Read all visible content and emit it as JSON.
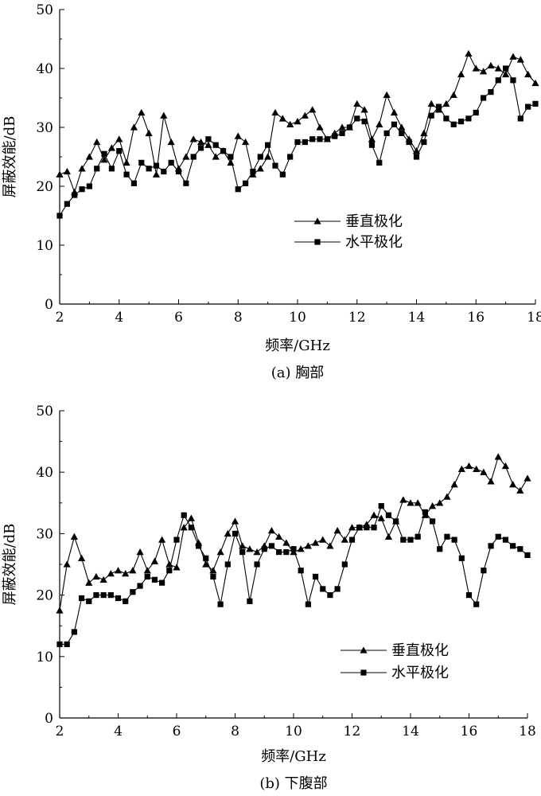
{
  "chart_data": [
    {
      "type": "line",
      "caption": "(a) 胸部",
      "xlabel": "频率/GHz",
      "ylabel": "屏蔽效能/dB",
      "xlim": [
        2,
        18
      ],
      "ylim": [
        0,
        50
      ],
      "xticks": [
        2,
        4,
        6,
        8,
        10,
        12,
        14,
        16,
        18
      ],
      "yticks": [
        0,
        10,
        20,
        30,
        40,
        50
      ],
      "grid": false,
      "legend_position": "center-right",
      "series": [
        {
          "name": "垂直极化",
          "marker": "triangle",
          "x": [
            2.0,
            2.25,
            2.5,
            2.75,
            3.0,
            3.25,
            3.5,
            3.75,
            4.0,
            4.25,
            4.5,
            4.75,
            5.0,
            5.25,
            5.5,
            5.75,
            6.0,
            6.25,
            6.5,
            6.75,
            7.0,
            7.25,
            7.5,
            7.75,
            8.0,
            8.25,
            8.5,
            8.75,
            9.0,
            9.25,
            9.5,
            9.75,
            10.0,
            10.25,
            10.5,
            10.75,
            11.0,
            11.25,
            11.5,
            11.75,
            12.0,
            12.25,
            12.5,
            12.75,
            13.0,
            13.25,
            13.5,
            13.75,
            14.0,
            14.25,
            14.5,
            14.75,
            15.0,
            15.25,
            15.5,
            15.75,
            16.0,
            16.25,
            16.5,
            16.75,
            17.0,
            17.25,
            17.5,
            17.75,
            18.0
          ],
          "y": [
            22,
            22.5,
            19,
            23,
            25,
            27.5,
            24.5,
            26.5,
            28,
            24,
            30,
            32.5,
            29,
            22,
            32,
            27.5,
            23,
            25,
            28,
            27.5,
            27,
            25,
            26,
            24,
            28.5,
            27.5,
            22,
            23,
            25,
            32.5,
            31.5,
            30.5,
            31,
            32,
            33,
            30,
            28,
            29,
            30,
            30,
            34,
            33,
            28,
            30.5,
            35.5,
            32.5,
            30,
            28,
            26,
            29,
            34,
            33,
            34,
            35.5,
            39,
            42.5,
            40,
            39.5,
            40.5,
            40,
            39,
            42,
            41.5,
            39,
            37.5
          ]
        },
        {
          "name": "水平极化",
          "marker": "square",
          "x": [
            2.0,
            2.25,
            2.5,
            2.75,
            3.0,
            3.25,
            3.5,
            3.75,
            4.0,
            4.25,
            4.5,
            4.75,
            5.0,
            5.25,
            5.5,
            5.75,
            6.0,
            6.25,
            6.5,
            6.75,
            7.0,
            7.25,
            7.5,
            7.75,
            8.0,
            8.25,
            8.5,
            8.75,
            9.0,
            9.25,
            9.5,
            9.75,
            10.0,
            10.25,
            10.5,
            10.75,
            11.0,
            11.25,
            11.5,
            11.75,
            12.0,
            12.25,
            12.5,
            12.75,
            13.0,
            13.25,
            13.5,
            13.75,
            14.0,
            14.25,
            14.5,
            14.75,
            15.0,
            15.25,
            15.5,
            15.75,
            16.0,
            16.25,
            16.5,
            16.75,
            17.0,
            17.25,
            17.5,
            17.75,
            18.0
          ],
          "y": [
            15,
            17,
            18.5,
            19.5,
            20,
            23,
            25.5,
            23,
            26,
            22,
            20.5,
            24,
            23,
            23.5,
            22.5,
            24,
            22.5,
            20.5,
            25,
            26.5,
            28,
            27,
            26,
            25,
            19.5,
            20.5,
            22.5,
            25,
            27,
            23.5,
            22,
            25,
            27.5,
            27.5,
            28,
            28,
            28,
            28.5,
            29,
            30,
            31.5,
            31,
            27,
            24,
            29,
            30.5,
            29,
            27.5,
            25,
            27.5,
            32,
            33.5,
            31.5,
            30.5,
            31,
            31.5,
            32.5,
            35,
            36,
            38,
            40,
            38,
            31.5,
            33.5,
            34
          ]
        }
      ]
    },
    {
      "type": "line",
      "caption": "(b) 下腹部",
      "xlabel": "频率/GHz",
      "ylabel": "屏蔽效能/dB",
      "xlim": [
        2,
        18
      ],
      "ylim": [
        0,
        50
      ],
      "xticks": [
        2,
        4,
        6,
        8,
        10,
        12,
        14,
        16,
        18
      ],
      "yticks": [
        0,
        10,
        20,
        30,
        40,
        50
      ],
      "grid": false,
      "legend_position": "lower-right",
      "series": [
        {
          "name": "垂直极化",
          "marker": "triangle",
          "x": [
            2.0,
            2.25,
            2.5,
            2.75,
            3.0,
            3.25,
            3.5,
            3.75,
            4.0,
            4.25,
            4.5,
            4.75,
            5.0,
            5.25,
            5.5,
            5.75,
            6.0,
            6.25,
            6.5,
            6.75,
            7.0,
            7.25,
            7.5,
            7.75,
            8.0,
            8.25,
            8.5,
            8.75,
            9.0,
            9.25,
            9.5,
            9.75,
            10.0,
            10.25,
            10.5,
            10.75,
            11.0,
            11.25,
            11.5,
            11.75,
            12.0,
            12.25,
            12.5,
            12.75,
            13.0,
            13.25,
            13.5,
            13.75,
            14.0,
            14.25,
            14.5,
            14.75,
            15.0,
            15.25,
            15.5,
            15.75,
            16.0,
            16.25,
            16.5,
            16.75,
            17.0,
            17.25,
            17.5,
            17.75,
            18.0
          ],
          "y": [
            17.5,
            25,
            29.5,
            26,
            22,
            23,
            22.5,
            23.5,
            24,
            23.5,
            24,
            27,
            24,
            25.5,
            29,
            25,
            24.5,
            31,
            32.5,
            28.5,
            25,
            24,
            27,
            30,
            32,
            28,
            27.5,
            27,
            28,
            30.5,
            29.5,
            28.5,
            27,
            27.5,
            28,
            28.5,
            29,
            28,
            30.5,
            29,
            31,
            31,
            31.5,
            33,
            32.5,
            29.5,
            32,
            35.5,
            35,
            35,
            33,
            34.5,
            35,
            36,
            38,
            40.5,
            41,
            40.5,
            40,
            38.5,
            42.5,
            41,
            38,
            37,
            39
          ]
        },
        {
          "name": "水平极化",
          "marker": "square",
          "x": [
            2.0,
            2.25,
            2.5,
            2.75,
            3.0,
            3.25,
            3.5,
            3.75,
            4.0,
            4.25,
            4.5,
            4.75,
            5.0,
            5.25,
            5.5,
            5.75,
            6.0,
            6.25,
            6.5,
            6.75,
            7.0,
            7.25,
            7.5,
            7.75,
            8.0,
            8.25,
            8.5,
            8.75,
            9.0,
            9.25,
            9.5,
            9.75,
            10.0,
            10.25,
            10.5,
            10.75,
            11.0,
            11.25,
            11.5,
            11.75,
            12.0,
            12.25,
            12.5,
            12.75,
            13.0,
            13.25,
            13.5,
            13.75,
            14.0,
            14.25,
            14.5,
            14.75,
            15.0,
            15.25,
            15.5,
            15.75,
            16.0,
            16.25,
            16.5,
            16.75,
            17.0,
            17.25,
            17.5,
            17.75,
            18.0
          ],
          "y": [
            12,
            12,
            14,
            19.5,
            19,
            20,
            20,
            20,
            19.5,
            19,
            20.5,
            21.5,
            23,
            22.5,
            22,
            24,
            29,
            33,
            31,
            28,
            26,
            23,
            18.5,
            25,
            30,
            27,
            19,
            25,
            27.5,
            28,
            27,
            27,
            27.5,
            24,
            18.5,
            23,
            21,
            20,
            21,
            25,
            29,
            31,
            31,
            31,
            34.5,
            33,
            32,
            29,
            29,
            29.5,
            33.5,
            32,
            27.5,
            29.5,
            29,
            26,
            20,
            18.5,
            24,
            28,
            29.5,
            29,
            28,
            27.5,
            26.5
          ]
        }
      ]
    }
  ]
}
